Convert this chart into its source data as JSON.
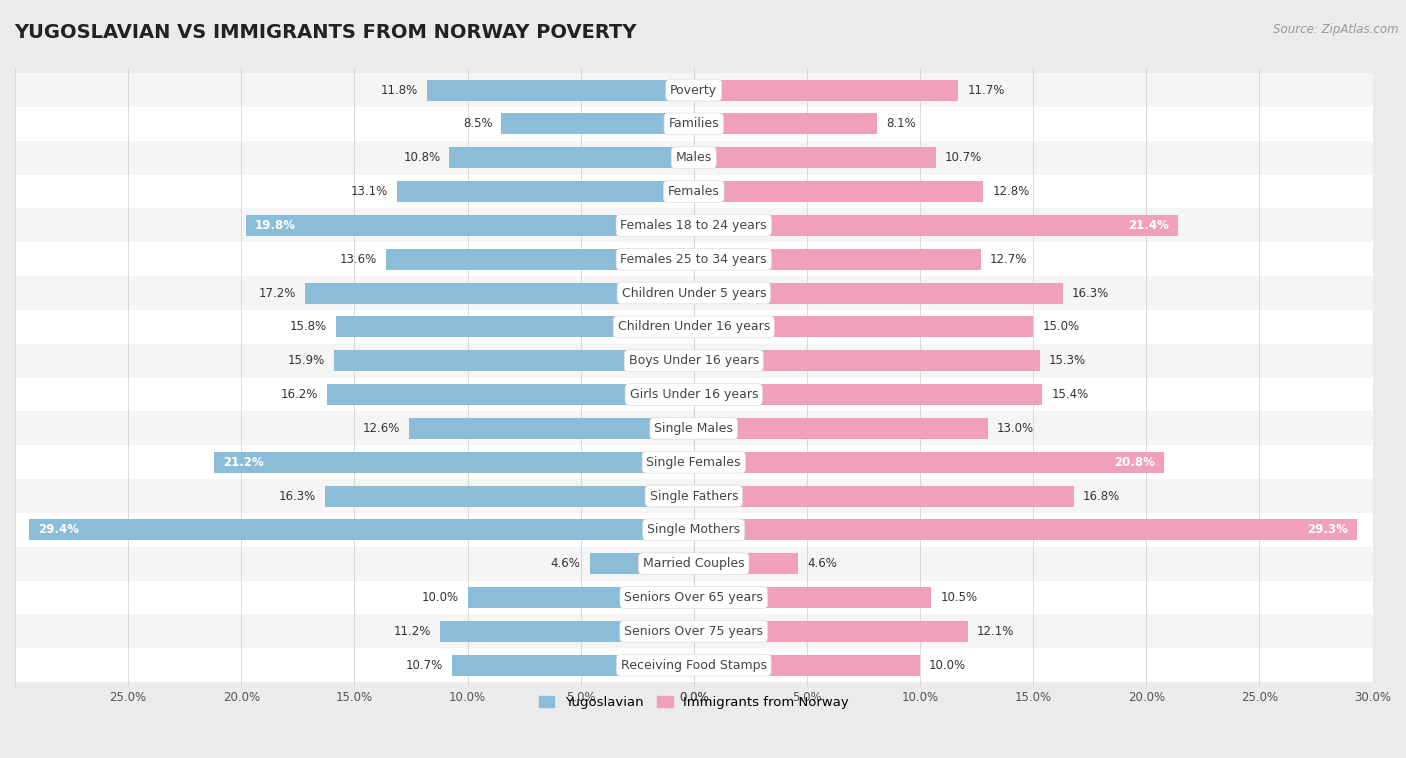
{
  "title": "YUGOSLAVIAN VS IMMIGRANTS FROM NORWAY POVERTY",
  "source": "Source: ZipAtlas.com",
  "categories": [
    "Poverty",
    "Families",
    "Males",
    "Females",
    "Females 18 to 24 years",
    "Females 25 to 34 years",
    "Children Under 5 years",
    "Children Under 16 years",
    "Boys Under 16 years",
    "Girls Under 16 years",
    "Single Males",
    "Single Females",
    "Single Fathers",
    "Single Mothers",
    "Married Couples",
    "Seniors Over 65 years",
    "Seniors Over 75 years",
    "Receiving Food Stamps"
  ],
  "yugoslavian": [
    11.8,
    8.5,
    10.8,
    13.1,
    19.8,
    13.6,
    17.2,
    15.8,
    15.9,
    16.2,
    12.6,
    21.2,
    16.3,
    29.4,
    4.6,
    10.0,
    11.2,
    10.7
  ],
  "norway": [
    11.7,
    8.1,
    10.7,
    12.8,
    21.4,
    12.7,
    16.3,
    15.0,
    15.3,
    15.4,
    13.0,
    20.8,
    16.8,
    29.3,
    4.6,
    10.5,
    12.1,
    10.0
  ],
  "blue_color": "#8BBDD9",
  "pink_color": "#F0A0BA",
  "blue_dark": "#6A9FC0",
  "pink_dark": "#E080A0",
  "xlim": 30.0,
  "background_color": "#EBEBEB",
  "row_colors": [
    "#F5F5F5",
    "#FFFFFF"
  ],
  "label_fontsize": 9,
  "value_fontsize": 8.5,
  "title_fontsize": 14,
  "inside_label_threshold": 18.0,
  "legend_labels": [
    "Yugoslavian",
    "Immigrants from Norway"
  ]
}
